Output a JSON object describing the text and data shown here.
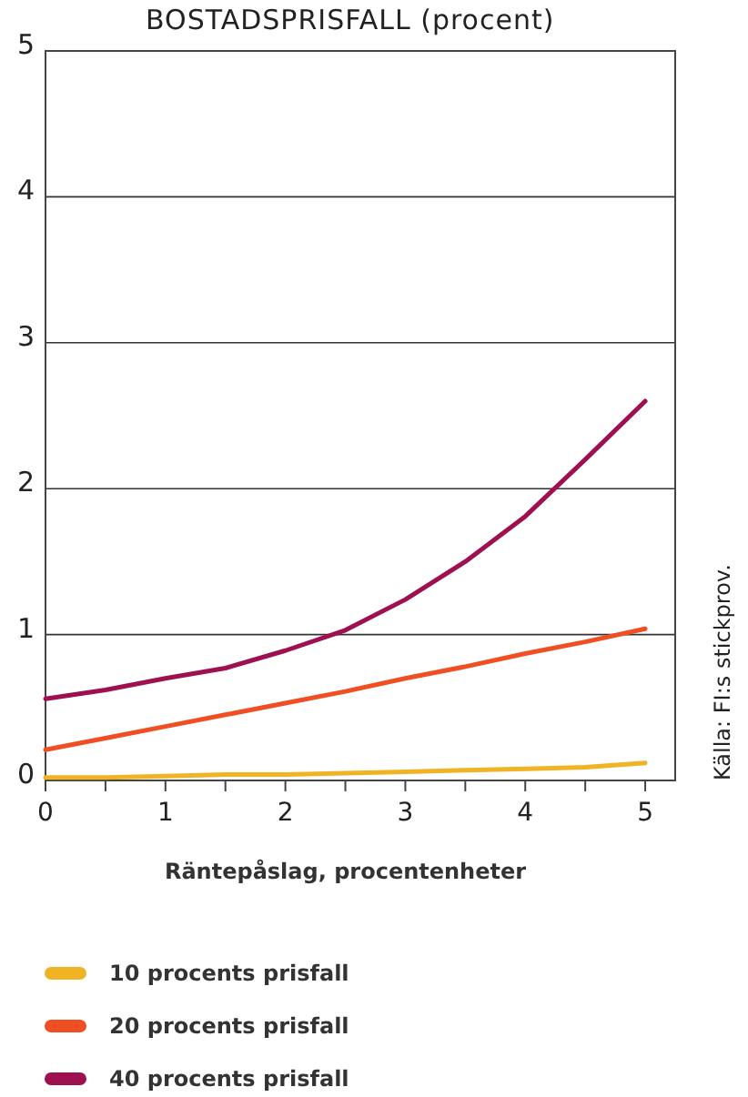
{
  "chart_data": {
    "type": "line",
    "title": "BOSTADSPRISFALL (procent)",
    "xlabel": "Räntepåslag, procentenheter",
    "x": [
      0,
      0.5,
      1,
      1.5,
      2,
      2.5,
      3,
      3.5,
      4,
      4.5,
      5
    ],
    "series": [
      {
        "name": "10 procents prisfall",
        "color": "#f0b323",
        "values": [
          0.02,
          0.02,
          0.03,
          0.04,
          0.04,
          0.05,
          0.06,
          0.07,
          0.08,
          0.09,
          0.12
        ]
      },
      {
        "name": "20 procents prisfall",
        "color": "#f04e23",
        "values": [
          0.21,
          0.29,
          0.37,
          0.45,
          0.53,
          0.61,
          0.7,
          0.78,
          0.87,
          0.95,
          1.04
        ]
      },
      {
        "name": "40 procents prisfall",
        "color": "#9e1050",
        "values": [
          0.56,
          0.62,
          0.7,
          0.77,
          0.89,
          1.03,
          1.24,
          1.5,
          1.81,
          2.2,
          2.6
        ]
      }
    ],
    "xlim": [
      0,
      5.25
    ],
    "ylim": [
      0,
      5
    ],
    "xticks": [
      0,
      {
        "value": 0.5,
        "label": null
      },
      1,
      {
        "value": 1.5,
        "label": null
      },
      2,
      {
        "value": 2.5,
        "label": null
      },
      3,
      {
        "value": 3.5,
        "label": null
      },
      4,
      {
        "value": 4.5,
        "label": null
      },
      5
    ],
    "yticks": [
      0,
      1,
      2,
      3,
      4,
      5
    ],
    "grid": "y",
    "legend": "bottom",
    "marker": "none",
    "line_style": "solid",
    "annotations": [
      "Källa: FI:s stickprov."
    ]
  }
}
